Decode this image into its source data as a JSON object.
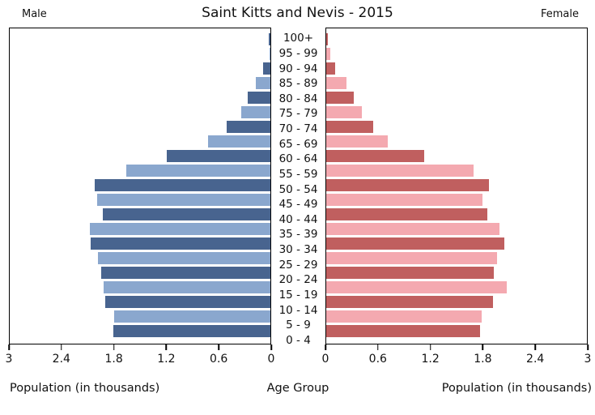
{
  "header": {
    "title": "Saint Kitts and Nevis - 2015",
    "male_label": "Male",
    "female_label": "Female"
  },
  "footer": {
    "left_caption": "Population (in thousands)",
    "center_caption": "Age Group",
    "right_caption": "Population (in thousands)"
  },
  "colors": {
    "male_dark": "#48648F",
    "male_light": "#8AA7CE",
    "female_dark": "#C05F5F",
    "female_light": "#F4A9B0",
    "axis": "#000000",
    "text": "#111111"
  },
  "chart_data": {
    "type": "bar",
    "subtype": "population-pyramid",
    "title": "Saint Kitts and Nevis - 2015",
    "ylabel": "Age Group",
    "xlabel_left": "Population (in thousands)",
    "xlabel_right": "Population (in thousands)",
    "xlim": [
      0,
      3
    ],
    "grid": false,
    "categories_top_to_bottom": [
      "100+",
      "95 - 99",
      "90 - 94",
      "85 - 89",
      "80 - 84",
      "75 - 79",
      "70 - 74",
      "65 - 69",
      "60 - 64",
      "55 - 59",
      "50 - 54",
      "45 - 49",
      "40 - 44",
      "35 - 39",
      "30 - 34",
      "25 - 29",
      "20 - 24",
      "15 - 19",
      "10 - 14",
      "5 - 9",
      "0 - 4"
    ],
    "series": [
      {
        "name": "Male",
        "side": "left",
        "values_top_to_bottom": [
          0.02,
          0.01,
          0.08,
          0.17,
          0.26,
          0.34,
          0.5,
          0.72,
          1.19,
          1.66,
          2.02,
          1.99,
          1.93,
          2.08,
          2.07,
          1.98,
          1.95,
          1.92,
          1.9,
          1.8,
          1.81
        ]
      },
      {
        "name": "Female",
        "side": "right",
        "values_top_to_bottom": [
          0.02,
          0.05,
          0.1,
          0.23,
          0.32,
          0.41,
          0.54,
          0.71,
          1.13,
          1.7,
          1.87,
          1.8,
          1.85,
          1.99,
          2.05,
          1.97,
          1.93,
          2.08,
          1.92,
          1.79,
          1.77
        ]
      }
    ],
    "axis_ticks": {
      "values": [
        0,
        0.6,
        1.2,
        1.8,
        2.4,
        3
      ],
      "labels": [
        "0",
        "0.6",
        "1.2",
        "1.8",
        "2.4",
        "3"
      ],
      "left_axis_labels_left_to_right": [
        "3",
        "2.4",
        "1.8",
        "1.2",
        "0.6",
        "0"
      ],
      "right_axis_labels_left_to_right": [
        "0",
        "0.6",
        "1.2",
        "1.8",
        "2.4",
        "3"
      ]
    }
  }
}
